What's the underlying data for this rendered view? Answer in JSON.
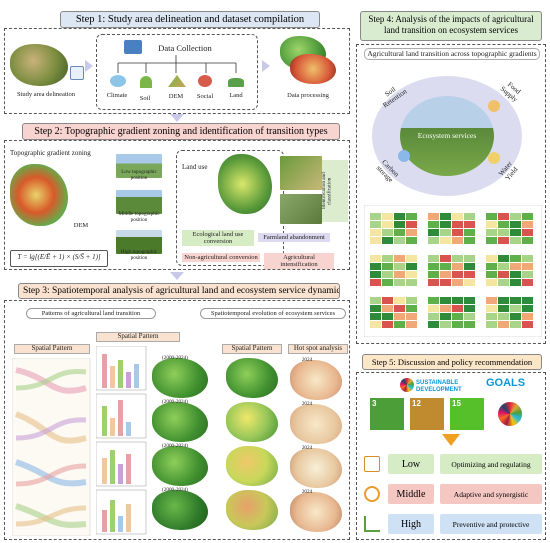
{
  "step1": {
    "title": "Step 1: Study area delineation and dataset compilation",
    "study_area": "Study area delineation",
    "data_collection": "Data Collection",
    "climate": "Climate",
    "soil": "Soil",
    "dem": "DEM",
    "social": "Social",
    "land": "Land",
    "processing": "Data processing"
  },
  "step2": {
    "title": "Step 2: Topographic gradient zoning and identification of transition types",
    "zoning": "Topographic gradient zoning",
    "dem": "DEM",
    "low": "Low topographic position",
    "middle": "Middle topographic position",
    "high": "High topographic position",
    "formula": "T = lg[(E/Ē + 1) × (S/S̄ + 1)]",
    "land_use": "Land use",
    "ecological": "Ecological land use conversion",
    "farmland": "Farmland abandonment",
    "non_agri": "Non-agricultural conversion",
    "agri": "Agricultural intensification",
    "identification": "Identification and classification"
  },
  "step3": {
    "title": "Step 3: Spatiotemporal analysis of agricultural land and ecosystem service dynamics.",
    "patterns": "Patterns of agricultural land transition",
    "evolution": "Spatiotemporal evolution of ecosystem services",
    "spatial1": "Spatial Pattern",
    "spatial2": "Spatial Pattern",
    "spatial3": "Spatial Pattern",
    "hotspot": "Hot spot analysis",
    "periods": [
      "(2000-2024)",
      "(2000-2024)",
      "(2000-2024)",
      "(2000-2024)"
    ],
    "years": [
      "2024",
      "2024",
      "2024",
      "2024"
    ]
  },
  "step4": {
    "title": "Step 4: Analysis of the impacts of agricultural land transition on ecosystem services",
    "subtitle": "Agricultural land transition across topographic gradients",
    "soil": "Soil Retention",
    "food": "Food Supply",
    "water": "Water Yield",
    "carbon": "Carbon storage",
    "center": "Ecosystem services"
  },
  "step5": {
    "title": "Step 5: Discussion and policy recommendation",
    "sdg_brand": "SUSTAINABLE DEVELOPMENT",
    "sdg_goals": "GOALS",
    "goal_nums": [
      "3",
      "12",
      "15"
    ],
    "levels": [
      {
        "name": "Low",
        "desc": "Optimizing and regulating",
        "color": "#d6ecc4"
      },
      {
        "name": "Middle",
        "desc": "Adaptive and synergistic",
        "color": "#f4c7c3"
      },
      {
        "name": "High",
        "desc": "Preventive and protective",
        "color": "#cfe1f4"
      }
    ]
  },
  "colors": {
    "step1": "#dde7f3",
    "step2": "#f8d4d0",
    "step3": "#f9e2cf",
    "step4": "#d9ecd0",
    "step5": "#fbe7c8"
  }
}
